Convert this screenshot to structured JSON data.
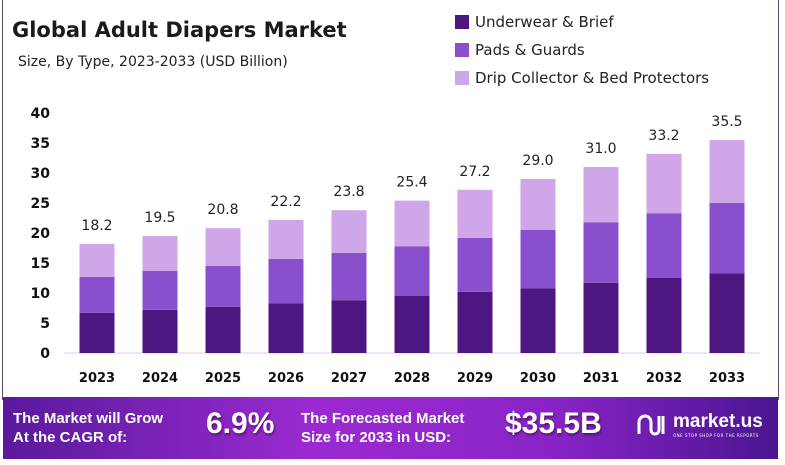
{
  "chart_data": {
    "type": "bar",
    "stacked": true,
    "title": "Global Adult Diapers Market",
    "subtitle": "Size, By Type, 2023-2033 (USD Billion)",
    "categories": [
      "2023",
      "2024",
      "2025",
      "2026",
      "2027",
      "2028",
      "2029",
      "2030",
      "2031",
      "2032",
      "2033"
    ],
    "series": [
      {
        "name": "Underwear & Brief",
        "color": "#4e1680",
        "values": [
          6.7,
          7.2,
          7.7,
          8.3,
          8.8,
          9.5,
          10.2,
          10.8,
          11.7,
          12.5,
          13.3
        ]
      },
      {
        "name": "Pads & Guards",
        "color": "#8a4fcc",
        "values": [
          6.0,
          6.5,
          6.8,
          7.4,
          7.9,
          8.3,
          9.0,
          9.7,
          10.1,
          10.8,
          11.7
        ]
      },
      {
        "name": "Drip Collector & Bed Protectors",
        "color": "#cfa6e8",
        "values": [
          5.5,
          5.8,
          6.3,
          6.5,
          7.1,
          7.6,
          8.0,
          8.5,
          9.2,
          9.9,
          10.5
        ]
      }
    ],
    "totals": [
      "18.2",
      "19.5",
      "20.8",
      "22.2",
      "23.8",
      "25.4",
      "27.2",
      "29.0",
      "31.0",
      "33.2",
      "35.5"
    ],
    "ylim": [
      0,
      40
    ],
    "yticks": [
      "0",
      "5",
      "10",
      "15",
      "20",
      "25",
      "30",
      "35",
      "40"
    ],
    "grid": false,
    "legend": "top-right"
  },
  "banner": {
    "cagr_label_1": "The Market will Grow",
    "cagr_label_2": "At the CAGR of:",
    "cagr_value": "6.9%",
    "forecast_label_1": "The Forecasted Market",
    "forecast_label_2": "Size for 2033 in USD:",
    "forecast_value": "$35.5B",
    "logo_name": "market.us",
    "logo_tagline": "ONE STOP SHOP FOR THE REPORTS"
  }
}
